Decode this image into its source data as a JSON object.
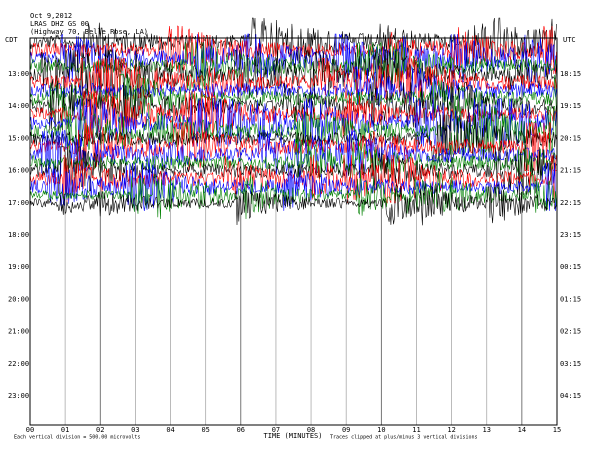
{
  "header": {
    "date": "Oct 9,2012",
    "station": "LRAS DHZ GS 00",
    "location": "(Highway 70, Belle Rose, LA)"
  },
  "left_axis": {
    "title": "CDT",
    "labels": [
      "13:00",
      "14:00",
      "15:00",
      "16:00",
      "17:00",
      "18:00",
      "19:00",
      "20:00",
      "21:00",
      "22:00",
      "23:00"
    ]
  },
  "right_axis": {
    "title": "UTC",
    "labels": [
      "18:15",
      "19:15",
      "20:15",
      "21:15",
      "22:15",
      "23:15",
      "00:15",
      "01:15",
      "02:15",
      "03:15",
      "04:15"
    ]
  },
  "x_axis": {
    "title": "TIME (MINUTES)",
    "labels": [
      "00",
      "01",
      "02",
      "03",
      "04",
      "05",
      "06",
      "07",
      "08",
      "09",
      "10",
      "11",
      "12",
      "13",
      "14",
      "15"
    ]
  },
  "footer": {
    "scale": "Each vertical division = 500.00 microvolts",
    "clip": "Traces clipped at plus/minus 3 vertical divisions"
  },
  "trace_colors": [
    "#000000",
    "#ff0000",
    "#0000ff",
    "#008000"
  ]
}
